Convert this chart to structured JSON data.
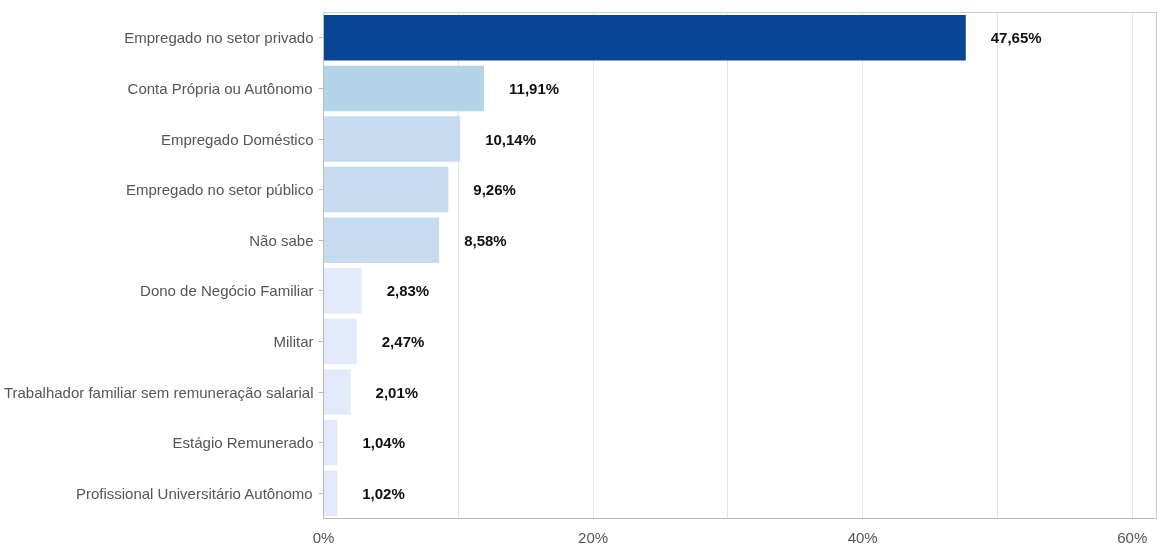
{
  "chart_data": {
    "type": "bar",
    "orientation": "horizontal",
    "categories": [
      "Empregado no setor privado",
      "Conta Própria ou Autônomo",
      "Empregado Doméstico",
      "Empregado no setor público",
      "Não sabe",
      "Dono de Negócio Familiar",
      "Militar",
      "Trabalhador familiar sem remuneração salarial",
      "Estágio Remunerado",
      "Profissional Universitário Autônomo"
    ],
    "values": [
      47.65,
      11.91,
      10.14,
      9.26,
      8.58,
      2.83,
      2.47,
      2.01,
      1.04,
      1.02
    ],
    "value_labels": [
      "47,65%",
      "11,91%",
      "10,14%",
      "9,26%",
      "8,58%",
      "2,83%",
      "2,47%",
      "2,01%",
      "1,04%",
      "1,02%"
    ],
    "colors": [
      "#084594",
      "#b4d4e9",
      "#c6dbef",
      "#c6dbef",
      "#c6dbef",
      "#e3ebfb",
      "#e3ebfb",
      "#e3ebfb",
      "#e3ebfb",
      "#e3ebfb"
    ],
    "xlim": [
      0,
      61.8
    ],
    "xticks": [
      {
        "value": 0,
        "label": "0%"
      },
      {
        "value": 10,
        "label": null
      },
      {
        "value": 20,
        "label": "20%"
      },
      {
        "value": 30,
        "label": null
      },
      {
        "value": 40,
        "label": "40%"
      },
      {
        "value": 50,
        "label": null
      },
      {
        "value": 60,
        "label": "60%"
      }
    ],
    "grid": "x"
  }
}
